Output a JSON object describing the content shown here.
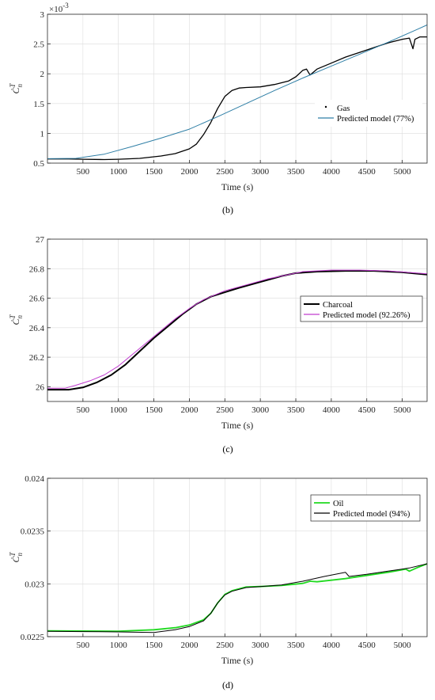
{
  "chart_data": [
    {
      "type": "line",
      "panel": "b",
      "caption": "(b)",
      "xlabel": "Time (s)",
      "ylabel": "Ċ",
      "ylabel_sup": "T",
      "ylabel_sub": "n",
      "exponent_label": "×10",
      "exponent_power": "-3",
      "xlim": [
        0,
        5350
      ],
      "ylim": [
        0.5,
        3.0
      ],
      "xticks": [
        500,
        1000,
        1500,
        2000,
        2500,
        3000,
        3500,
        4000,
        4500,
        5000
      ],
      "yticks": [
        0.5,
        1,
        1.5,
        2,
        2.5,
        3
      ],
      "ytick_labels": [
        "0.5",
        "1",
        "1.5",
        "2",
        "2.5",
        "3"
      ],
      "legend_position": "right",
      "grid": true,
      "series": [
        {
          "name": "Gas",
          "color": "#000000",
          "width": 1.3,
          "points": [
            [
              0,
              0.57
            ],
            [
              300,
              0.57
            ],
            [
              500,
              0.565
            ],
            [
              800,
              0.56
            ],
            [
              1000,
              0.565
            ],
            [
              1300,
              0.58
            ],
            [
              1600,
              0.62
            ],
            [
              1800,
              0.66
            ],
            [
              2000,
              0.74
            ],
            [
              2100,
              0.82
            ],
            [
              2200,
              0.98
            ],
            [
              2300,
              1.18
            ],
            [
              2400,
              1.42
            ],
            [
              2500,
              1.62
            ],
            [
              2600,
              1.72
            ],
            [
              2700,
              1.76
            ],
            [
              2800,
              1.77
            ],
            [
              3000,
              1.78
            ],
            [
              3200,
              1.82
            ],
            [
              3400,
              1.88
            ],
            [
              3500,
              1.95
            ],
            [
              3600,
              2.06
            ],
            [
              3650,
              2.08
            ],
            [
              3700,
              1.98
            ],
            [
              3800,
              2.08
            ],
            [
              4000,
              2.18
            ],
            [
              4200,
              2.28
            ],
            [
              4400,
              2.36
            ],
            [
              4600,
              2.44
            ],
            [
              4800,
              2.52
            ],
            [
              5000,
              2.58
            ],
            [
              5100,
              2.6
            ],
            [
              5150,
              2.42
            ],
            [
              5180,
              2.58
            ],
            [
              5250,
              2.62
            ],
            [
              5350,
              2.62
            ]
          ]
        },
        {
          "name": "Predicted model (77%)",
          "color": "#2f7fa6",
          "width": 1.0,
          "points": [
            [
              0,
              0.575
            ],
            [
              400,
              0.58
            ],
            [
              800,
              0.65
            ],
            [
              1200,
              0.78
            ],
            [
              1600,
              0.92
            ],
            [
              2000,
              1.07
            ],
            [
              2400,
              1.28
            ],
            [
              2800,
              1.5
            ],
            [
              3200,
              1.72
            ],
            [
              3600,
              1.93
            ],
            [
              4000,
              2.13
            ],
            [
              4400,
              2.33
            ],
            [
              4800,
              2.53
            ],
            [
              5200,
              2.74
            ],
            [
              5350,
              2.82
            ]
          ]
        }
      ]
    },
    {
      "type": "line",
      "panel": "c",
      "caption": "(c)",
      "xlabel": "Time (s)",
      "ylabel": "Ċ",
      "ylabel_sup": "T",
      "ylabel_sub": "n",
      "xlim": [
        0,
        5350
      ],
      "ylim": [
        25.9,
        27.0
      ],
      "xticks": [
        500,
        1000,
        1500,
        2000,
        2500,
        3000,
        3500,
        4000,
        4500,
        5000
      ],
      "yticks": [
        26,
        26.2,
        26.4,
        26.6,
        26.8,
        27
      ],
      "ytick_labels": [
        "26",
        "26.2",
        "26.4",
        "26.6",
        "26.8",
        "27"
      ],
      "legend_position": "right",
      "grid": true,
      "series": [
        {
          "name": "Charcoal",
          "color": "#000000",
          "width": 2.0,
          "points": [
            [
              0,
              25.98
            ],
            [
              300,
              25.98
            ],
            [
              500,
              25.995
            ],
            [
              700,
              26.03
            ],
            [
              900,
              26.08
            ],
            [
              1100,
              26.15
            ],
            [
              1300,
              26.24
            ],
            [
              1500,
              26.33
            ],
            [
              1700,
              26.41
            ],
            [
              1900,
              26.49
            ],
            [
              2100,
              26.56
            ],
            [
              2300,
              26.61
            ],
            [
              2500,
              26.64
            ],
            [
              2700,
              26.67
            ],
            [
              3000,
              26.71
            ],
            [
              3300,
              26.75
            ],
            [
              3500,
              26.77
            ],
            [
              3800,
              26.78
            ],
            [
              4200,
              26.785
            ],
            [
              4600,
              26.785
            ],
            [
              5000,
              26.775
            ],
            [
              5350,
              26.76
            ]
          ]
        },
        {
          "name": "Predicted model (92.26%)",
          "color": "#c03ccf",
          "width": 1.0,
          "points": [
            [
              0,
              25.99
            ],
            [
              250,
              25.99
            ],
            [
              400,
              26.01
            ],
            [
              600,
              26.04
            ],
            [
              800,
              26.08
            ],
            [
              1000,
              26.14
            ],
            [
              1200,
              26.22
            ],
            [
              1400,
              26.3
            ],
            [
              1600,
              26.38
            ],
            [
              1800,
              26.46
            ],
            [
              2000,
              26.53
            ],
            [
              2200,
              26.59
            ],
            [
              2500,
              26.65
            ],
            [
              2800,
              26.69
            ],
            [
              3100,
              26.73
            ],
            [
              3400,
              26.76
            ],
            [
              3600,
              26.78
            ],
            [
              4000,
              26.79
            ],
            [
              4400,
              26.79
            ],
            [
              4800,
              26.785
            ],
            [
              5350,
              26.765
            ]
          ]
        }
      ]
    },
    {
      "type": "line",
      "panel": "d",
      "caption": "(d)",
      "xlabel": "Time (s)",
      "ylabel": "Ċ",
      "ylabel_sup": "T",
      "ylabel_sub": "n",
      "xlim": [
        0,
        5350
      ],
      "ylim": [
        0.0225,
        0.024
      ],
      "xticks": [
        500,
        1000,
        1500,
        2000,
        2500,
        3000,
        3500,
        4000,
        4500,
        5000
      ],
      "yticks": [
        0.0225,
        0.023,
        0.0235,
        0.024
      ],
      "ytick_labels": [
        "0.0225",
        "0.023",
        "0.0235",
        "0.024"
      ],
      "legend_position": "top-right",
      "grid": true,
      "series": [
        {
          "name": "Oil",
          "color": "#1fd91f",
          "width": 1.8,
          "points": [
            [
              0,
              0.022555
            ],
            [
              500,
              0.022553
            ],
            [
              1000,
              0.022552
            ],
            [
              1500,
              0.022565
            ],
            [
              1800,
              0.022585
            ],
            [
              2000,
              0.02261
            ],
            [
              2200,
              0.02266
            ],
            [
              2300,
              0.02272
            ],
            [
              2400,
              0.02282
            ],
            [
              2500,
              0.0229
            ],
            [
              2600,
              0.022935
            ],
            [
              2800,
              0.02297
            ],
            [
              3000,
              0.022975
            ],
            [
              3300,
              0.022985
            ],
            [
              3600,
              0.023005
            ],
            [
              3700,
              0.023025
            ],
            [
              3800,
              0.02302
            ],
            [
              4000,
              0.023035
            ],
            [
              4200,
              0.02305
            ],
            [
              4500,
              0.02308
            ],
            [
              4800,
              0.02311
            ],
            [
              5050,
              0.02314
            ],
            [
              5100,
              0.02312
            ],
            [
              5200,
              0.02315
            ],
            [
              5350,
              0.02319
            ]
          ]
        },
        {
          "name": "Predicted model (94%)",
          "color": "#000000",
          "width": 1.0,
          "points": [
            [
              0,
              0.02255
            ],
            [
              500,
              0.022548
            ],
            [
              1000,
              0.022545
            ],
            [
              1500,
              0.02254
            ],
            [
              1800,
              0.022565
            ],
            [
              2000,
              0.022595
            ],
            [
              2200,
              0.02265
            ],
            [
              2300,
              0.02272
            ],
            [
              2400,
              0.02282
            ],
            [
              2500,
              0.022895
            ],
            [
              2600,
              0.02293
            ],
            [
              2800,
              0.022965
            ],
            [
              3000,
              0.022975
            ],
            [
              3300,
              0.02299
            ],
            [
              3600,
              0.023025
            ],
            [
              3900,
              0.02307
            ],
            [
              4200,
              0.02311
            ],
            [
              4250,
              0.02307
            ],
            [
              4500,
              0.02309
            ],
            [
              4800,
              0.02312
            ],
            [
              5100,
              0.02315
            ],
            [
              5350,
              0.02319
            ]
          ]
        }
      ]
    }
  ]
}
